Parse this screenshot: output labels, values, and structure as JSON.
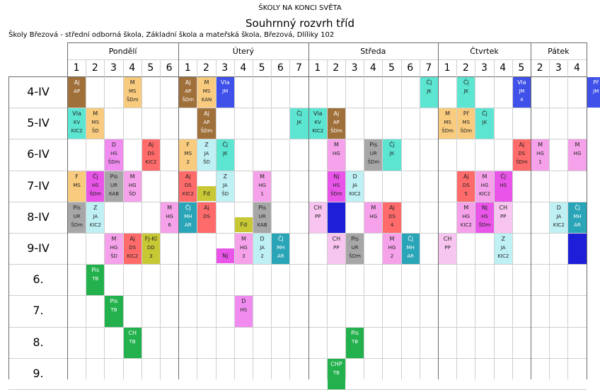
{
  "header": {
    "school": "ŠKOLY NA KONCI SVĚTA",
    "title": "Souhrnný rozvrh tříd",
    "subtitle": "Školy Březová - střední odborná škola, Základní škola a mateřská škola, Březová, Dlíliky 102"
  },
  "days": [
    {
      "name": "Pondělí",
      "periods": [
        "1",
        "2",
        "3",
        "4",
        "5",
        "6"
      ]
    },
    {
      "name": "Úterý",
      "periods": [
        "1",
        "2",
        "3",
        "4",
        "5",
        "6",
        "7"
      ]
    },
    {
      "name": "Středa",
      "periods": [
        "1",
        "2",
        "3",
        "4",
        "5",
        "6",
        "7"
      ]
    },
    {
      "name": "Čtvrtek",
      "periods": [
        "1",
        "2",
        "3",
        "4",
        "5"
      ]
    },
    {
      "name": "Pátek",
      "periods": [
        "2",
        "3",
        "4"
      ]
    }
  ],
  "rows": [
    "4-IV",
    "5-IV",
    "6-IV",
    "7-IV",
    "8-IV",
    "9-IV",
    "6.",
    "7.",
    "8.",
    "9."
  ],
  "colors": {
    "Aj": "#a0703a",
    "M": "#f8cb7e",
    "Vla": "#3f51e8",
    "Čj": "#5ce6d2",
    "F": "#f8cb7e",
    "Přu": "#f8cb7e",
    "D": "#f08cf0",
    "Pis": "#a7a7a7",
    "Z": "#bff0f4",
    "CH": "#f8c4f0",
    "Nj": "#f8c4f0",
    "FjKi": "#c8c835",
    "PisG": "#22b14c",
    "Ma": "#ff6b6b",
    "Bl": "#1e1ed8",
    "Te": "#2aa5b8",
    "Cjr": "#e855e8",
    "Mhg": "#f5a2ea"
  },
  "lessons": [
    {
      "r": 0,
      "c": 0,
      "t": [
        "Aj",
        "AP",
        ""
      ],
      "k": "Aj"
    },
    {
      "r": 0,
      "c": 3,
      "t": [
        "M",
        "MS",
        "ŠDm"
      ],
      "k": "M"
    },
    {
      "r": 0,
      "c": 6,
      "t": [
        "Aj",
        "AP",
        "ŠDm"
      ],
      "k": "Aj"
    },
    {
      "r": 0,
      "c": 7,
      "t": [
        "M",
        "MS",
        "KAN"
      ],
      "k": "M"
    },
    {
      "r": 0,
      "c": 8,
      "t": [
        "Vla",
        "JM",
        ""
      ],
      "k": "Vla"
    },
    {
      "r": 0,
      "c": 19,
      "t": [
        "Čj",
        "JK",
        ""
      ],
      "k": "Čj"
    },
    {
      "r": 0,
      "c": 21,
      "t": [
        "Čj",
        "JK",
        ""
      ],
      "k": "Čj"
    },
    {
      "r": 0,
      "c": 24,
      "t": [
        "Vla",
        "JM",
        "4"
      ],
      "k": "Vla"
    },
    {
      "r": 0,
      "c": 28,
      "t": [
        "Př",
        "JM",
        ""
      ],
      "k": "Vla"
    },
    {
      "r": 1,
      "c": 0,
      "t": [
        "Vla",
        "KV",
        "KIC2"
      ],
      "k": "Čj"
    },
    {
      "r": 1,
      "c": 1,
      "t": [
        "M",
        "MS",
        "ŠD"
      ],
      "k": "M"
    },
    {
      "r": 1,
      "c": 7,
      "t": [
        "Aj",
        "AP",
        "ŠDm"
      ],
      "k": "Aj"
    },
    {
      "r": 1,
      "c": 12,
      "t": [
        "Čj",
        "JK",
        ""
      ],
      "k": "Čj"
    },
    {
      "r": 1,
      "c": 13,
      "t": [
        "Vla",
        "KV",
        "KIC2"
      ],
      "k": "Čj"
    },
    {
      "r": 1,
      "c": 14,
      "t": [
        "Aj",
        "AP",
        "ŠDm"
      ],
      "k": "Aj"
    },
    {
      "r": 1,
      "c": 20,
      "t": [
        "M",
        "MS",
        "ŠDm"
      ],
      "k": "M"
    },
    {
      "r": 1,
      "c": 21,
      "t": [
        "Př",
        "MS",
        "ŠDm"
      ],
      "k": "M"
    },
    {
      "r": 1,
      "c": 22,
      "t": [
        "Čj",
        "JK",
        ""
      ],
      "k": "Čj"
    },
    {
      "r": 2,
      "c": 2,
      "t": [
        "D",
        "HS",
        "ŠDm"
      ],
      "k": "D"
    },
    {
      "r": 2,
      "c": 4,
      "t": [
        "Aj",
        "DS",
        "KIC2"
      ],
      "k": "Ma"
    },
    {
      "r": 2,
      "c": 6,
      "t": [
        "F",
        "MS",
        "2"
      ],
      "k": "M"
    },
    {
      "r": 2,
      "c": 7,
      "t": [
        "Z",
        "JA",
        "ŠD"
      ],
      "k": "Z"
    },
    {
      "r": 2,
      "c": 8,
      "t": [
        "Čj",
        "JK",
        ""
      ],
      "k": "Čj"
    },
    {
      "r": 2,
      "c": 14,
      "t": [
        "M",
        "HG",
        ""
      ],
      "k": "Mhg"
    },
    {
      "r": 2,
      "c": 16,
      "t": [
        "Pis",
        "UR",
        "ŠDm"
      ],
      "k": "Pis"
    },
    {
      "r": 2,
      "c": 17,
      "t": [
        "Čj",
        "JK",
        ""
      ],
      "k": "Čj"
    },
    {
      "r": 2,
      "c": 24,
      "t": [
        "Aj",
        "DS",
        "ŠDm"
      ],
      "k": "Ma"
    },
    {
      "r": 2,
      "c": 25,
      "t": [
        "M",
        "HG",
        "1"
      ],
      "k": "Mhg"
    },
    {
      "r": 2,
      "c": 27,
      "t": [
        "M",
        "HG",
        ""
      ],
      "k": "Mhg"
    },
    {
      "r": 3,
      "c": 0,
      "t": [
        "F",
        "MS",
        ""
      ],
      "k": "M"
    },
    {
      "r": 3,
      "c": 1,
      "t": [
        "Čj",
        "HS",
        "ŠDm"
      ],
      "k": "Cjr"
    },
    {
      "r": 3,
      "c": 2,
      "t": [
        "Pis",
        "UR",
        "KAB"
      ],
      "k": "Pis"
    },
    {
      "r": 3,
      "c": 3,
      "t": [
        "M",
        "HG",
        "ŠD"
      ],
      "k": "Mhg"
    },
    {
      "r": 3,
      "c": 6,
      "t": [
        "Aj",
        "DS",
        "KIC2"
      ],
      "k": "Ma"
    },
    {
      "r": 3,
      "c": 8,
      "t": [
        "Z",
        "JA",
        "ŠD"
      ],
      "k": "Z"
    },
    {
      "r": 3,
      "c": 10,
      "t": [
        "M",
        "HG",
        "1"
      ],
      "k": "Mhg"
    },
    {
      "r": 3,
      "c": 14,
      "t": [
        "Nj",
        "HS",
        "ŠDm"
      ],
      "k": "Cjr"
    },
    {
      "r": 3,
      "c": 15,
      "t": [
        "D",
        "JA",
        "KIC2"
      ],
      "k": "Z"
    },
    {
      "r": 3,
      "c": 21,
      "t": [
        "Aj",
        "DS",
        "5"
      ],
      "k": "Ma"
    },
    {
      "r": 3,
      "c": 22,
      "t": [
        "M",
        "HG",
        "KIC2"
      ],
      "k": "Mhg"
    },
    {
      "r": 3,
      "c": 23,
      "t": [
        "Čj",
        "HS",
        ""
      ],
      "k": "Cjr"
    },
    {
      "r": 4,
      "c": 0,
      "t": [
        "Pis",
        "UR",
        "ŠDm"
      ],
      "k": "Pis"
    },
    {
      "r": 4,
      "c": 1,
      "t": [
        "Z",
        "JA",
        "KIC2"
      ],
      "k": "Z"
    },
    {
      "r": 4,
      "c": 5,
      "t": [
        "M",
        "HG",
        "6"
      ],
      "k": "Mhg"
    },
    {
      "r": 4,
      "c": 6,
      "t": [
        "Čj",
        "MH",
        "AR"
      ],
      "k": "Te"
    },
    {
      "r": 4,
      "c": 7,
      "t": [
        "Aj",
        "DS",
        ""
      ],
      "k": "Ma"
    },
    {
      "r": 4,
      "c": 10,
      "t": [
        "Pis",
        "UR",
        "KAB"
      ],
      "k": "Pis"
    },
    {
      "r": 4,
      "c": 13,
      "t": [
        "CH",
        "PP",
        ""
      ],
      "k": "CH"
    },
    {
      "r": 4,
      "c": 14,
      "t": [
        "",
        "",
        ""
      ],
      "k": "Bl"
    },
    {
      "r": 4,
      "c": 16,
      "t": [
        "M",
        "HG",
        ""
      ],
      "k": "Mhg"
    },
    {
      "r": 4,
      "c": 17,
      "t": [
        "Aj",
        "DS",
        "4"
      ],
      "k": "Ma"
    },
    {
      "r": 4,
      "c": 21,
      "t": [
        "M",
        "HG",
        "KIC2"
      ],
      "k": "Mhg"
    },
    {
      "r": 4,
      "c": 22,
      "t": [
        "Nj",
        "HS",
        "ŠDm"
      ],
      "k": "Cjr"
    },
    {
      "r": 4,
      "c": 23,
      "t": [
        "CH",
        "PP",
        ""
      ],
      "k": "CH"
    },
    {
      "r": 4,
      "c": 26,
      "t": [
        "D",
        "JA",
        "KIC2"
      ],
      "k": "Z"
    },
    {
      "r": 4,
      "c": 27,
      "t": [
        "Čj",
        "MH",
        "AR"
      ],
      "k": "Te"
    },
    {
      "r": 5,
      "c": 2,
      "t": [
        "M",
        "HG",
        "ŠD"
      ],
      "k": "Mhg"
    },
    {
      "r": 5,
      "c": 3,
      "t": [
        "Aj",
        "DS",
        "KIC2"
      ],
      "k": "Ma"
    },
    {
      "r": 5,
      "c": 4,
      "t": [
        "Fj-Kl",
        "DD",
        "3"
      ],
      "k": "FjKi"
    },
    {
      "r": 5,
      "c": 9,
      "t": [
        "M",
        "HG",
        "3"
      ],
      "k": "Mhg"
    },
    {
      "r": 5,
      "c": 10,
      "t": [
        "D",
        "JA",
        "2"
      ],
      "k": "Z"
    },
    {
      "r": 5,
      "c": 11,
      "t": [
        "Čj",
        "MH",
        "AR"
      ],
      "k": "Te"
    },
    {
      "r": 5,
      "c": 14,
      "t": [
        "CH",
        "PP",
        ""
      ],
      "k": "CH"
    },
    {
      "r": 5,
      "c": 15,
      "t": [
        "Pis",
        "UR",
        "ŠDm"
      ],
      "k": "Pis"
    },
    {
      "r": 5,
      "c": 17,
      "t": [
        "M",
        "HG",
        "2"
      ],
      "k": "Mhg"
    },
    {
      "r": 5,
      "c": 18,
      "t": [
        "Čj",
        "MH",
        "AR"
      ],
      "k": "Te"
    },
    {
      "r": 5,
      "c": 20,
      "t": [
        "CH",
        "PP",
        ""
      ],
      "k": "CH"
    },
    {
      "r": 5,
      "c": 23,
      "t": [
        "Z",
        "JA",
        "KIC2"
      ],
      "k": "Z"
    },
    {
      "r": 5,
      "c": 27,
      "t": [
        "",
        "",
        ""
      ],
      "k": "Bl"
    },
    {
      "r": 6,
      "c": 1,
      "t": [
        "Pis",
        "TB",
        ""
      ],
      "k": "PisG"
    },
    {
      "r": 7,
      "c": 2,
      "t": [
        "Pis",
        "TB",
        ""
      ],
      "k": "PisG"
    },
    {
      "r": 7,
      "c": 9,
      "t": [
        "D",
        "HS",
        ""
      ],
      "k": "D"
    },
    {
      "r": 8,
      "c": 3,
      "t": [
        "CH",
        "TB",
        ""
      ],
      "k": "PisG"
    },
    {
      "r": 8,
      "c": 15,
      "t": [
        "Pis",
        "TB",
        ""
      ],
      "k": "PisG"
    },
    {
      "r": 9,
      "c": 14,
      "t": [
        "CHP",
        "TB",
        ""
      ],
      "k": "PisG"
    }
  ],
  "mini": [
    {
      "r": 3,
      "c": 7,
      "t": "Fd",
      "k": "FjKi"
    },
    {
      "r": 4,
      "c": 9,
      "t": "Fd",
      "k": "FjKi"
    },
    {
      "r": 5,
      "c": 8,
      "t": "Nj",
      "k": "Cjr"
    }
  ]
}
